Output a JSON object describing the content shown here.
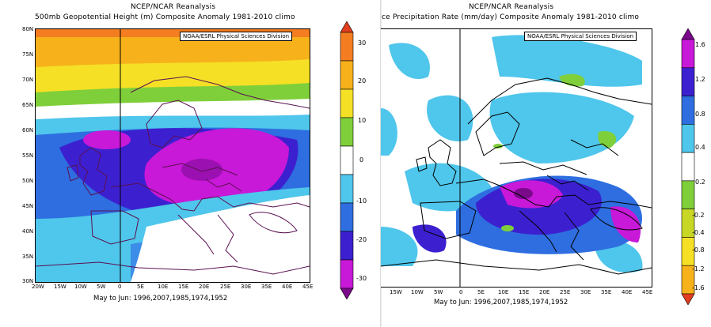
{
  "left": {
    "header": "NCEP/NCAR Reanalysis",
    "title": "500mb Geopotential Height (m) Composite Anomaly 1981-2010 climo",
    "credit": "NOAA/ESRL Physical Sciences Division",
    "period": "May to Jun: 1996,2007,1985,1974,1952",
    "lat_labels": [
      "80N",
      "75N",
      "70N",
      "65N",
      "60N",
      "55N",
      "50N",
      "45N",
      "40N",
      "35N",
      "30N"
    ],
    "lon_labels": [
      "20W",
      "15W",
      "10W",
      "5W",
      "0",
      "5E",
      "10E",
      "15E",
      "20E",
      "25E",
      "30E",
      "35E",
      "40E",
      "45E"
    ],
    "colorbar": {
      "labels": [
        "30",
        "20",
        "10",
        "0",
        "-10",
        "-20",
        "-30"
      ],
      "colors": [
        "#e13d1f",
        "#f37d20",
        "#f7b21b",
        "#f5e026",
        "#7fcf3a",
        "#ffffff",
        "#4fc6eb",
        "#2e6ee0",
        "#3c20d0",
        "#c818d8",
        "#7a0a8a"
      ]
    }
  },
  "right": {
    "header": "NCEP/NCAR Reanalysis",
    "title": "ce Precipitation Rate (mm/day) Composite Anomaly 1981-2010 climo",
    "credit": "NOAA/ESRL Physical Sciences Division",
    "period": "May to Jun: 1996,2007,1985,1974,1952",
    "lat_labels": [],
    "lon_labels": [
      "15W",
      "10W",
      "5W",
      "0",
      "5E",
      "10E",
      "15E",
      "20E",
      "25E",
      "30E",
      "35E",
      "40E",
      "45E"
    ],
    "colorbar": {
      "labels": [
        "1.6",
        "1.2",
        "0.8",
        "0.4",
        "0.2",
        "-0.2",
        "-0.4",
        "-0.8",
        "-1.2",
        "-1.6"
      ],
      "colors": [
        "#7a0a8a",
        "#c818d8",
        "#3c20d0",
        "#2e6ee0",
        "#4fc6eb",
        "#ffffff",
        "#7fcf3a",
        "#c8d626",
        "#f5e026",
        "#f7b21b",
        "#e13d1f"
      ]
    }
  },
  "map_features": [
    "coastlines",
    "country-borders",
    "prime-meridian"
  ]
}
